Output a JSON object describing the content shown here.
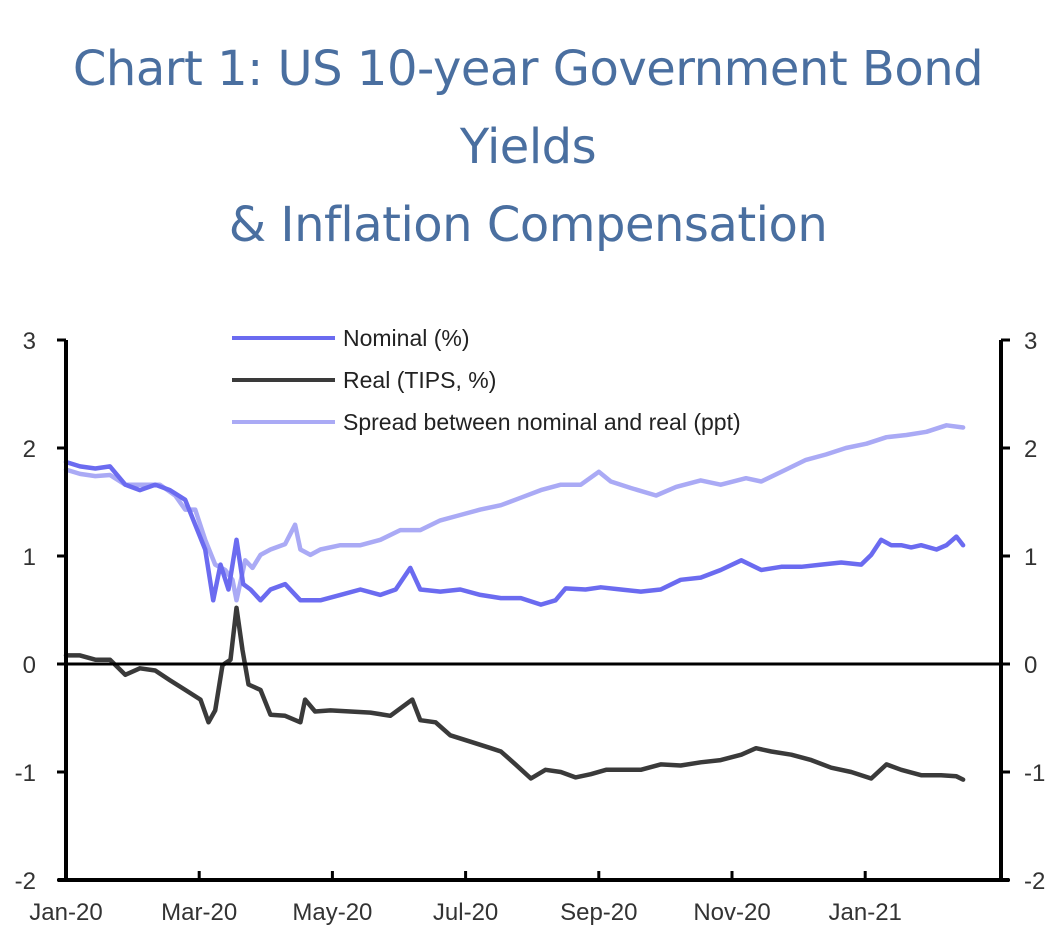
{
  "chart_data": {
    "type": "line",
    "title": [
      "Chart 1: US 10-year Government Bond",
      "Yields",
      "& Inflation Compensation"
    ],
    "xlabel": "",
    "ylabel_left": "",
    "ylabel_right": "",
    "x_unit": "months since Jan-2020",
    "x_ticks": [
      {
        "x": 0,
        "label": "Jan-20"
      },
      {
        "x": 2,
        "label": "Mar-20"
      },
      {
        "x": 4,
        "label": "May-20"
      },
      {
        "x": 6,
        "label": "Jul-20"
      },
      {
        "x": 8,
        "label": "Sep-20"
      },
      {
        "x": 10,
        "label": "Nov-20"
      },
      {
        "x": 12,
        "label": "Jan-21"
      }
    ],
    "xlim": [
      0,
      14
    ],
    "ylim": [
      -2,
      3
    ],
    "y_ticks": [
      "3",
      "2",
      "1",
      "0",
      "-1",
      "-2"
    ],
    "y_tick_values": [
      3,
      2,
      1,
      0,
      -1,
      -2
    ],
    "zero_line": true,
    "grid": false,
    "legend_position": "top-center",
    "series": [
      {
        "name": "Nominal (%)",
        "color": "#6b6bf0",
        "points": [
          [
            0.0,
            1.87
          ],
          [
            0.21,
            1.83
          ],
          [
            0.44,
            1.81
          ],
          [
            0.66,
            1.83
          ],
          [
            0.89,
            1.66
          ],
          [
            1.11,
            1.61
          ],
          [
            1.34,
            1.66
          ],
          [
            1.56,
            1.61
          ],
          [
            1.79,
            1.52
          ],
          [
            1.94,
            1.29
          ],
          [
            2.09,
            1.06
          ],
          [
            2.21,
            0.59
          ],
          [
            2.32,
            0.92
          ],
          [
            2.44,
            0.69
          ],
          [
            2.56,
            1.15
          ],
          [
            2.66,
            0.74
          ],
          [
            2.77,
            0.69
          ],
          [
            2.92,
            0.59
          ],
          [
            3.07,
            0.69
          ],
          [
            3.29,
            0.74
          ],
          [
            3.52,
            0.59
          ],
          [
            3.82,
            0.59
          ],
          [
            4.12,
            0.64
          ],
          [
            4.42,
            0.69
          ],
          [
            4.72,
            0.64
          ],
          [
            4.95,
            0.69
          ],
          [
            5.17,
            0.89
          ],
          [
            5.32,
            0.69
          ],
          [
            5.62,
            0.67
          ],
          [
            5.92,
            0.69
          ],
          [
            6.22,
            0.64
          ],
          [
            6.53,
            0.61
          ],
          [
            6.83,
            0.61
          ],
          [
            7.13,
            0.55
          ],
          [
            7.35,
            0.59
          ],
          [
            7.5,
            0.7
          ],
          [
            7.8,
            0.69
          ],
          [
            8.03,
            0.71
          ],
          [
            8.33,
            0.69
          ],
          [
            8.63,
            0.67
          ],
          [
            8.93,
            0.69
          ],
          [
            9.23,
            0.78
          ],
          [
            9.53,
            0.8
          ],
          [
            9.83,
            0.87
          ],
          [
            10.14,
            0.96
          ],
          [
            10.44,
            0.87
          ],
          [
            10.74,
            0.9
          ],
          [
            11.04,
            0.9
          ],
          [
            11.34,
            0.92
          ],
          [
            11.64,
            0.94
          ],
          [
            11.94,
            0.92
          ],
          [
            12.09,
            1.01
          ],
          [
            12.24,
            1.15
          ],
          [
            12.39,
            1.1
          ],
          [
            12.54,
            1.1
          ],
          [
            12.69,
            1.08
          ],
          [
            12.84,
            1.1
          ],
          [
            13.07,
            1.06
          ],
          [
            13.22,
            1.1
          ],
          [
            13.37,
            1.18
          ],
          [
            13.47,
            1.1
          ]
        ]
      },
      {
        "name": "Real (TIPS, %)",
        "color": "#3a3a3a",
        "points": [
          [
            0.0,
            0.08
          ],
          [
            0.21,
            0.08
          ],
          [
            0.44,
            0.04
          ],
          [
            0.66,
            0.04
          ],
          [
            0.89,
            -0.1
          ],
          [
            1.11,
            -0.04
          ],
          [
            1.34,
            -0.06
          ],
          [
            1.56,
            -0.15
          ],
          [
            1.79,
            -0.24
          ],
          [
            2.02,
            -0.33
          ],
          [
            2.14,
            -0.54
          ],
          [
            2.24,
            -0.43
          ],
          [
            2.35,
            -0.01
          ],
          [
            2.47,
            0.04
          ],
          [
            2.56,
            0.52
          ],
          [
            2.65,
            0.13
          ],
          [
            2.74,
            -0.19
          ],
          [
            2.92,
            -0.24
          ],
          [
            3.07,
            -0.47
          ],
          [
            3.29,
            -0.48
          ],
          [
            3.52,
            -0.54
          ],
          [
            3.59,
            -0.33
          ],
          [
            3.74,
            -0.44
          ],
          [
            3.97,
            -0.43
          ],
          [
            4.27,
            -0.44
          ],
          [
            4.57,
            -0.45
          ],
          [
            4.87,
            -0.48
          ],
          [
            5.2,
            -0.33
          ],
          [
            5.32,
            -0.52
          ],
          [
            5.55,
            -0.54
          ],
          [
            5.77,
            -0.66
          ],
          [
            6.08,
            -0.72
          ],
          [
            6.38,
            -0.78
          ],
          [
            6.53,
            -0.81
          ],
          [
            6.75,
            -0.93
          ],
          [
            6.98,
            -1.06
          ],
          [
            7.2,
            -0.98
          ],
          [
            7.43,
            -1.0
          ],
          [
            7.65,
            -1.05
          ],
          [
            7.88,
            -1.02
          ],
          [
            8.11,
            -0.98
          ],
          [
            8.33,
            -0.98
          ],
          [
            8.63,
            -0.98
          ],
          [
            8.93,
            -0.93
          ],
          [
            9.23,
            -0.94
          ],
          [
            9.53,
            -0.91
          ],
          [
            9.83,
            -0.89
          ],
          [
            10.14,
            -0.84
          ],
          [
            10.36,
            -0.78
          ],
          [
            10.59,
            -0.81
          ],
          [
            10.89,
            -0.84
          ],
          [
            11.19,
            -0.89
          ],
          [
            11.49,
            -0.96
          ],
          [
            11.79,
            -1.0
          ],
          [
            12.09,
            -1.06
          ],
          [
            12.32,
            -0.93
          ],
          [
            12.54,
            -0.98
          ],
          [
            12.84,
            -1.03
          ],
          [
            13.14,
            -1.03
          ],
          [
            13.37,
            -1.04
          ],
          [
            13.47,
            -1.07
          ]
        ]
      },
      {
        "name": "Spread between nominal and real (ppt)",
        "color": "#aaaaf5",
        "points": [
          [
            0.0,
            1.8
          ],
          [
            0.21,
            1.76
          ],
          [
            0.44,
            1.74
          ],
          [
            0.66,
            1.75
          ],
          [
            0.89,
            1.66
          ],
          [
            1.11,
            1.66
          ],
          [
            1.41,
            1.66
          ],
          [
            1.64,
            1.56
          ],
          [
            1.79,
            1.43
          ],
          [
            1.94,
            1.43
          ],
          [
            2.09,
            1.15
          ],
          [
            2.24,
            0.92
          ],
          [
            2.39,
            0.87
          ],
          [
            2.5,
            0.78
          ],
          [
            2.56,
            0.59
          ],
          [
            2.69,
            0.96
          ],
          [
            2.8,
            0.89
          ],
          [
            2.92,
            1.01
          ],
          [
            3.07,
            1.06
          ],
          [
            3.29,
            1.11
          ],
          [
            3.44,
            1.29
          ],
          [
            3.52,
            1.06
          ],
          [
            3.67,
            1.01
          ],
          [
            3.82,
            1.06
          ],
          [
            4.12,
            1.1
          ],
          [
            4.42,
            1.1
          ],
          [
            4.72,
            1.15
          ],
          [
            5.02,
            1.24
          ],
          [
            5.32,
            1.24
          ],
          [
            5.62,
            1.33
          ],
          [
            5.92,
            1.38
          ],
          [
            6.22,
            1.43
          ],
          [
            6.53,
            1.47
          ],
          [
            6.83,
            1.54
          ],
          [
            7.13,
            1.61
          ],
          [
            7.43,
            1.66
          ],
          [
            7.73,
            1.66
          ],
          [
            8.0,
            1.78
          ],
          [
            8.18,
            1.69
          ],
          [
            8.48,
            1.63
          ],
          [
            8.86,
            1.56
          ],
          [
            9.16,
            1.64
          ],
          [
            9.53,
            1.7
          ],
          [
            9.83,
            1.66
          ],
          [
            10.21,
            1.72
          ],
          [
            10.44,
            1.69
          ],
          [
            10.81,
            1.8
          ],
          [
            11.11,
            1.89
          ],
          [
            11.41,
            1.94
          ],
          [
            11.71,
            2.0
          ],
          [
            12.02,
            2.04
          ],
          [
            12.32,
            2.1
          ],
          [
            12.62,
            2.12
          ],
          [
            12.92,
            2.15
          ],
          [
            13.22,
            2.21
          ],
          [
            13.47,
            2.19
          ]
        ]
      }
    ]
  }
}
